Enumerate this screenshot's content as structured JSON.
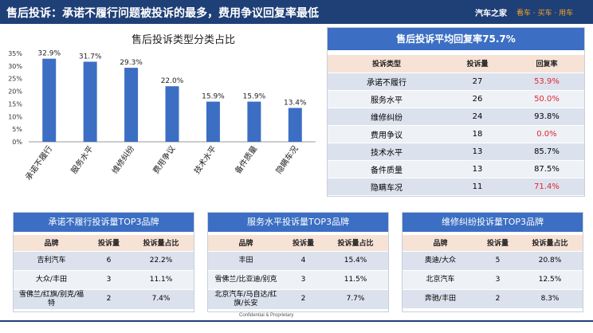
{
  "header": {
    "title": "售后投诉：承诺不履行问题被投诉的最多，费用争议回复率最低",
    "brand": "汽车之家",
    "slogan": "看车 · 买车 · 用车"
  },
  "chart_data": {
    "type": "bar",
    "title": "售后投诉类型分类占比",
    "categories": [
      "承诺不履行",
      "服务水平",
      "维修纠纷",
      "费用争议",
      "技术水平",
      "备件质量",
      "隐瞒车况"
    ],
    "values": [
      32.9,
      31.7,
      29.3,
      22.0,
      15.9,
      15.9,
      13.4
    ],
    "value_labels": [
      "32.9%",
      "31.7%",
      "29.3%",
      "22.0%",
      "15.9%",
      "15.9%",
      "13.4%"
    ],
    "y_ticks": [
      "0%",
      "5%",
      "10%",
      "15%",
      "20%",
      "25%",
      "30%",
      "35%"
    ],
    "ylim": [
      0,
      35
    ],
    "color": "#3c6fc3"
  },
  "reply_table": {
    "title": "售后投诉平均回复率75.7%",
    "headers": [
      "投诉类型",
      "投诉量",
      "回复率"
    ],
    "rows": [
      [
        "承诺不履行",
        "27",
        "53.9%"
      ],
      [
        "服务水平",
        "26",
        "50.0%"
      ],
      [
        "维修纠纷",
        "24",
        "93.8%"
      ],
      [
        "费用争议",
        "18",
        "0.0%"
      ],
      [
        "技术水平",
        "13",
        "85.7%"
      ],
      [
        "备件质量",
        "13",
        "87.5%"
      ],
      [
        "隐瞒车况",
        "11",
        "71.4%"
      ]
    ],
    "red_rows": [
      0,
      1,
      3,
      6
    ]
  },
  "brand_tables": [
    {
      "title": "承诺不履行投诉量TOP3品牌",
      "headers": [
        "品牌",
        "投诉量",
        "投诉量占比"
      ],
      "rows": [
        [
          "吉利汽车",
          "6",
          "22.2%"
        ],
        [
          "大众/丰田",
          "3",
          "11.1%"
        ],
        [
          "雪佛兰/红旗/别克/福特",
          "2",
          "7.4%"
        ]
      ]
    },
    {
      "title": "服务水平投诉量TOP3品牌",
      "headers": [
        "品牌",
        "投诉量",
        "投诉量占比"
      ],
      "rows": [
        [
          "丰田",
          "4",
          "15.4%"
        ],
        [
          "雪佛兰/比亚迪/别克",
          "3",
          "11.5%"
        ],
        [
          "北京汽车/马自达/红旗/长安",
          "2",
          "7.7%"
        ]
      ]
    },
    {
      "title": "维修纠纷投诉量TOP3品牌",
      "headers": [
        "品牌",
        "投诉量",
        "投诉量占比"
      ],
      "rows": [
        [
          "奥迪/大众",
          "5",
          "20.8%"
        ],
        [
          "北京汽车",
          "3",
          "12.5%"
        ],
        [
          "奔驰/丰田",
          "2",
          "8.3%"
        ]
      ]
    }
  ],
  "footer": {
    "text": "Confidential & Proprietary"
  }
}
